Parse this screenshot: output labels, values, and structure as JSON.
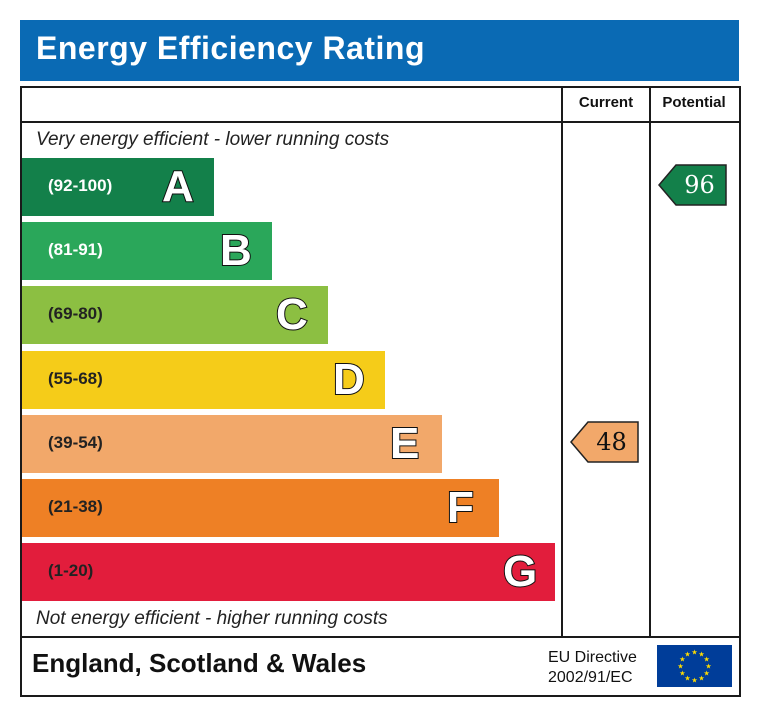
{
  "title": "Energy Efficiency Rating",
  "columns": {
    "current": "Current",
    "potential": "Potential"
  },
  "top_caption": "Very energy efficient - lower running costs",
  "bottom_caption": "Not energy efficient - higher running costs",
  "footer": {
    "region": "England, Scotland & Wales",
    "directive_line1": "EU Directive",
    "directive_line2": "2002/91/EC"
  },
  "icons": {
    "flag": "eu-flag-icon"
  },
  "chart_data": {
    "type": "bar",
    "title": "Energy Efficiency Rating",
    "categories": [
      "A",
      "B",
      "C",
      "D",
      "E",
      "F",
      "G"
    ],
    "ranges": [
      "(92-100)",
      "(81-91)",
      "(69-80)",
      "(55-68)",
      "(39-54)",
      "(21-38)",
      "(1-20)"
    ],
    "bands": [
      {
        "letter": "A",
        "range": "(92-100)",
        "min": 92,
        "max": 100,
        "color": "#13804a",
        "text_color": "#ffffff"
      },
      {
        "letter": "B",
        "range": "(81-91)",
        "min": 81,
        "max": 91,
        "color": "#2aa75a",
        "text_color": "#ffffff"
      },
      {
        "letter": "C",
        "range": "(69-80)",
        "min": 69,
        "max": 80,
        "color": "#8cbf42",
        "text_color": "#222222"
      },
      {
        "letter": "D",
        "range": "(55-68)",
        "min": 55,
        "max": 68,
        "color": "#f5cc19",
        "text_color": "#222222"
      },
      {
        "letter": "E",
        "range": "(39-54)",
        "min": 39,
        "max": 54,
        "color": "#f2a86a",
        "text_color": "#222222"
      },
      {
        "letter": "F",
        "range": "(21-38)",
        "min": 21,
        "max": 38,
        "color": "#ee8025",
        "text_color": "#222222"
      },
      {
        "letter": "G",
        "range": "(1-20)",
        "min": 1,
        "max": 20,
        "color": "#e21d3c",
        "text_color": "#222222"
      }
    ],
    "current": {
      "value": 48,
      "band": "E",
      "color": "#f2a86a",
      "text_color": "#111111"
    },
    "potential": {
      "value": 96,
      "band": "A",
      "color": "#13804a",
      "text_color": "#ffffff"
    }
  }
}
